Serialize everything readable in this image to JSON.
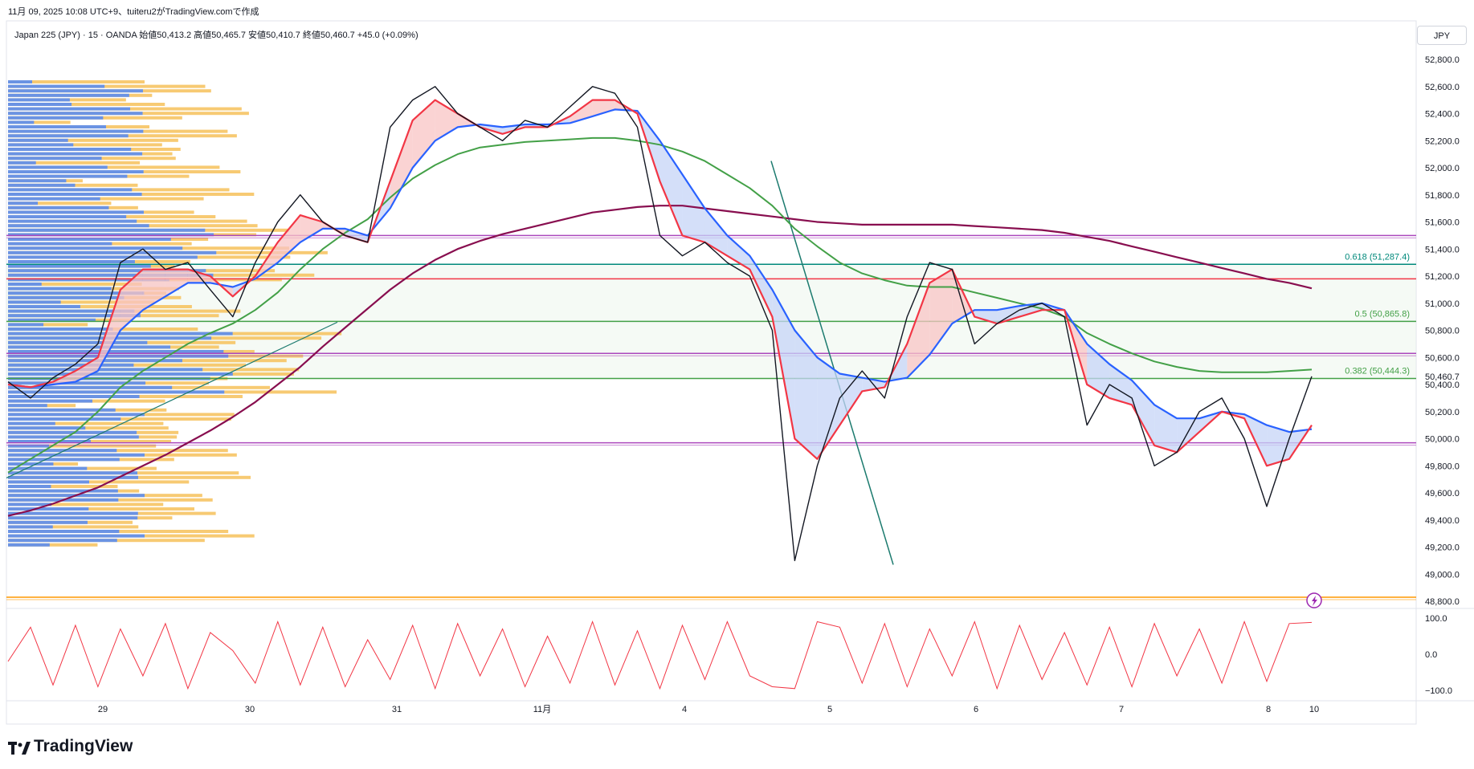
{
  "header": {
    "created_line": "11月 09, 2025 10:08 UTC+9、tuiteru2がTradingView.comで作成",
    "symbol_line": "Japan 225 (JPY) · 15 · OANDA  始値50,413.2  高値50,465.7  安値50,410.7  終値50,460.7  +45.0 (+0.09%)"
  },
  "currency": "JPY",
  "brand": "TradingView",
  "colors": {
    "price": "#131722",
    "ema_fast": "#f23645",
    "ema_mid": "#2962ff",
    "ema_slow": "#43a047",
    "ema_long": "#880e4f",
    "vp_up": "#5b8def",
    "vp_down": "#f6c15b",
    "level_purple": "#ab47bc",
    "level_red": "#f23645",
    "level_teal": "#00897b",
    "level_green": "#43a047",
    "oscillator": "#f23645"
  },
  "chart_data": [
    {
      "type": "line",
      "title": "Japan 225 (JPY) · 15 · OANDA",
      "ylim": [
        48800,
        52800
      ],
      "y_ticks": [
        "52,800.0",
        "52,600.0",
        "52,400.0",
        "52,200.0",
        "52,000.0",
        "51,800.0",
        "51,600.0",
        "51,400.0",
        "51,200.0",
        "51,000.0",
        "50,800.0",
        "50,600.0",
        "50,460.7",
        "50,400.0",
        "50,200.0",
        "50,000.0",
        "49,800.0",
        "49,600.0",
        "49,400.0",
        "49,200.0",
        "49,000.0",
        "48,800.0"
      ],
      "x_ticks": [
        "29",
        "30",
        "31",
        "11月",
        "4",
        "5",
        "6",
        "7",
        "8",
        "10"
      ],
      "last_price": "50,460.7",
      "fib_levels": [
        {
          "label": "0.618 (51,287.4)",
          "value": 51287.4
        },
        {
          "label": "0.5 (50,865.8)",
          "value": 50865.8
        },
        {
          "label": "0.382 (50,444.3)",
          "value": 50444.3
        }
      ],
      "horizontal_levels": [
        51500,
        51180,
        50630,
        49970,
        48830
      ],
      "series": [
        {
          "key": "price",
          "values": [
            50420,
            50300,
            50450,
            50550,
            50700,
            51300,
            51400,
            51250,
            51300,
            51100,
            50900,
            51300,
            51600,
            51800,
            51600,
            51500,
            51450,
            52300,
            52500,
            52600,
            52400,
            52300,
            52200,
            52350,
            52300,
            52450,
            52600,
            52550,
            52300,
            51500,
            51350,
            51450,
            51300,
            51200,
            50800,
            49100,
            49800,
            50300,
            50500,
            50300,
            50900,
            51300,
            51250,
            50700,
            50850,
            50950,
            51000,
            50900,
            50100,
            50400,
            50300,
            49800,
            49900,
            50200,
            50300,
            50000,
            49500,
            50000,
            50460
          ]
        },
        {
          "key": "ema_fast",
          "values": [
            50400,
            50380,
            50420,
            50500,
            50600,
            51100,
            51250,
            51250,
            51250,
            51200,
            51050,
            51200,
            51450,
            51650,
            51600,
            51500,
            51450,
            51900,
            52350,
            52500,
            52400,
            52300,
            52250,
            52300,
            52300,
            52380,
            52500,
            52500,
            52400,
            51900,
            51500,
            51450,
            51350,
            51250,
            50900,
            50000,
            49850,
            50100,
            50350,
            50380,
            50700,
            51150,
            51250,
            50900,
            50850,
            50900,
            50950,
            50950,
            50400,
            50300,
            50250,
            49950,
            49900,
            50050,
            50200,
            50150,
            49800,
            49850,
            50100
          ]
        },
        {
          "key": "ema_mid",
          "values": [
            50400,
            50380,
            50400,
            50420,
            50500,
            50800,
            50950,
            51050,
            51150,
            51150,
            51120,
            51180,
            51300,
            51450,
            51550,
            51550,
            51500,
            51700,
            52000,
            52200,
            52300,
            52320,
            52300,
            52320,
            52320,
            52330,
            52380,
            52430,
            52420,
            52200,
            51950,
            51700,
            51500,
            51350,
            51100,
            50800,
            50600,
            50480,
            50450,
            50420,
            50450,
            50620,
            50850,
            50950,
            50950,
            50980,
            51000,
            50950,
            50700,
            50550,
            50430,
            50250,
            50150,
            50150,
            50200,
            50180,
            50100,
            50050,
            50070
          ]
        },
        {
          "key": "ema_slow",
          "values": [
            49750,
            49850,
            49950,
            50050,
            50200,
            50380,
            50500,
            50600,
            50700,
            50780,
            50850,
            50950,
            51080,
            51250,
            51400,
            51520,
            51620,
            51780,
            51920,
            52020,
            52100,
            52150,
            52170,
            52190,
            52200,
            52210,
            52220,
            52220,
            52200,
            52170,
            52120,
            52050,
            51950,
            51850,
            51720,
            51550,
            51420,
            51300,
            51220,
            51170,
            51130,
            51120,
            51120,
            51080,
            51040,
            51000,
            50960,
            50900,
            50780,
            50700,
            50630,
            50570,
            50530,
            50500,
            50490,
            50490,
            50490,
            50500,
            50510
          ]
        },
        {
          "key": "ema_long",
          "values": [
            49430,
            49470,
            49520,
            49580,
            49640,
            49720,
            49800,
            49880,
            49970,
            50060,
            50160,
            50270,
            50400,
            50530,
            50680,
            50820,
            50960,
            51100,
            51220,
            51320,
            51400,
            51460,
            51510,
            51550,
            51590,
            51630,
            51670,
            51690,
            51710,
            51720,
            51720,
            51700,
            51680,
            51660,
            51640,
            51620,
            51600,
            51590,
            51580,
            51580,
            51580,
            51580,
            51580,
            51570,
            51560,
            51550,
            51540,
            51520,
            51490,
            51460,
            51420,
            51380,
            51340,
            51300,
            51260,
            51220,
            51180,
            51150,
            51110
          ]
        }
      ]
    },
    {
      "type": "line",
      "title": "",
      "ylim": [
        -100,
        100
      ],
      "y_ticks": [
        "100.0",
        "0.0",
        "−100.0"
      ],
      "series": [
        {
          "key": "oscillator",
          "values": [
            -20,
            75,
            -85,
            80,
            -90,
            70,
            -60,
            85,
            -95,
            60,
            10,
            -80,
            90,
            -85,
            75,
            -90,
            40,
            -70,
            80,
            -95,
            85,
            -60,
            70,
            -90,
            50,
            -80,
            90,
            -85,
            65,
            -95,
            80,
            -70,
            90,
            -60,
            -90,
            -95,
            90,
            75,
            -80,
            85,
            -90,
            70,
            -60,
            90,
            -95,
            80,
            -70,
            60,
            -85,
            75,
            -90,
            85,
            -60,
            70,
            -80,
            90,
            -75,
            85,
            88
          ]
        }
      ]
    }
  ]
}
